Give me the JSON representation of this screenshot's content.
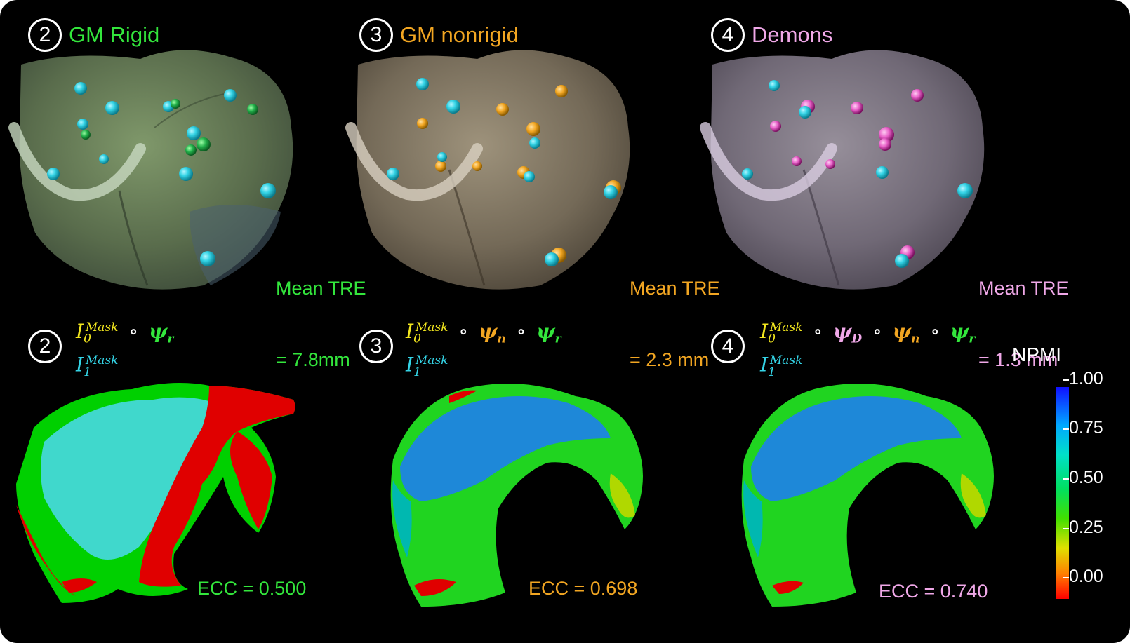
{
  "colors": {
    "rigid": "#33e63c",
    "nonrigid": "#f2a622",
    "demons": "#f0a8e8",
    "cyan": "#34d4e6",
    "yellow": "#f2e61e"
  },
  "top_panels": [
    {
      "number": "2",
      "title": "GM Rigid",
      "tre_line1": "Mean TRE",
      "tre_line2": "= 7.8mm"
    },
    {
      "number": "3",
      "title": "GM nonrigid",
      "tre_line1": "Mean TRE",
      "tre_line2": "= 2.3 mm"
    },
    {
      "number": "4",
      "title": "Demons",
      "tre_line1": "Mean TRE",
      "tre_line2": "= 1.3 mm"
    }
  ],
  "bottom_panels": [
    {
      "number": "2",
      "ecc": "ECC = 0.500"
    },
    {
      "number": "3",
      "ecc": "ECC = 0.698"
    },
    {
      "number": "4",
      "ecc": "ECC = 0.740"
    }
  ],
  "formula": {
    "i0": "I",
    "sub0": "0",
    "i1": "I",
    "sub1": "1",
    "mask": "Mask",
    "compose": "∘",
    "psi": "ψ",
    "r": "r",
    "n": "n",
    "d": "D"
  },
  "colorbar": {
    "title": "NPMI",
    "ticks": [
      "1.00",
      "0.75",
      "0.50",
      "0.25",
      "0.00"
    ]
  }
}
